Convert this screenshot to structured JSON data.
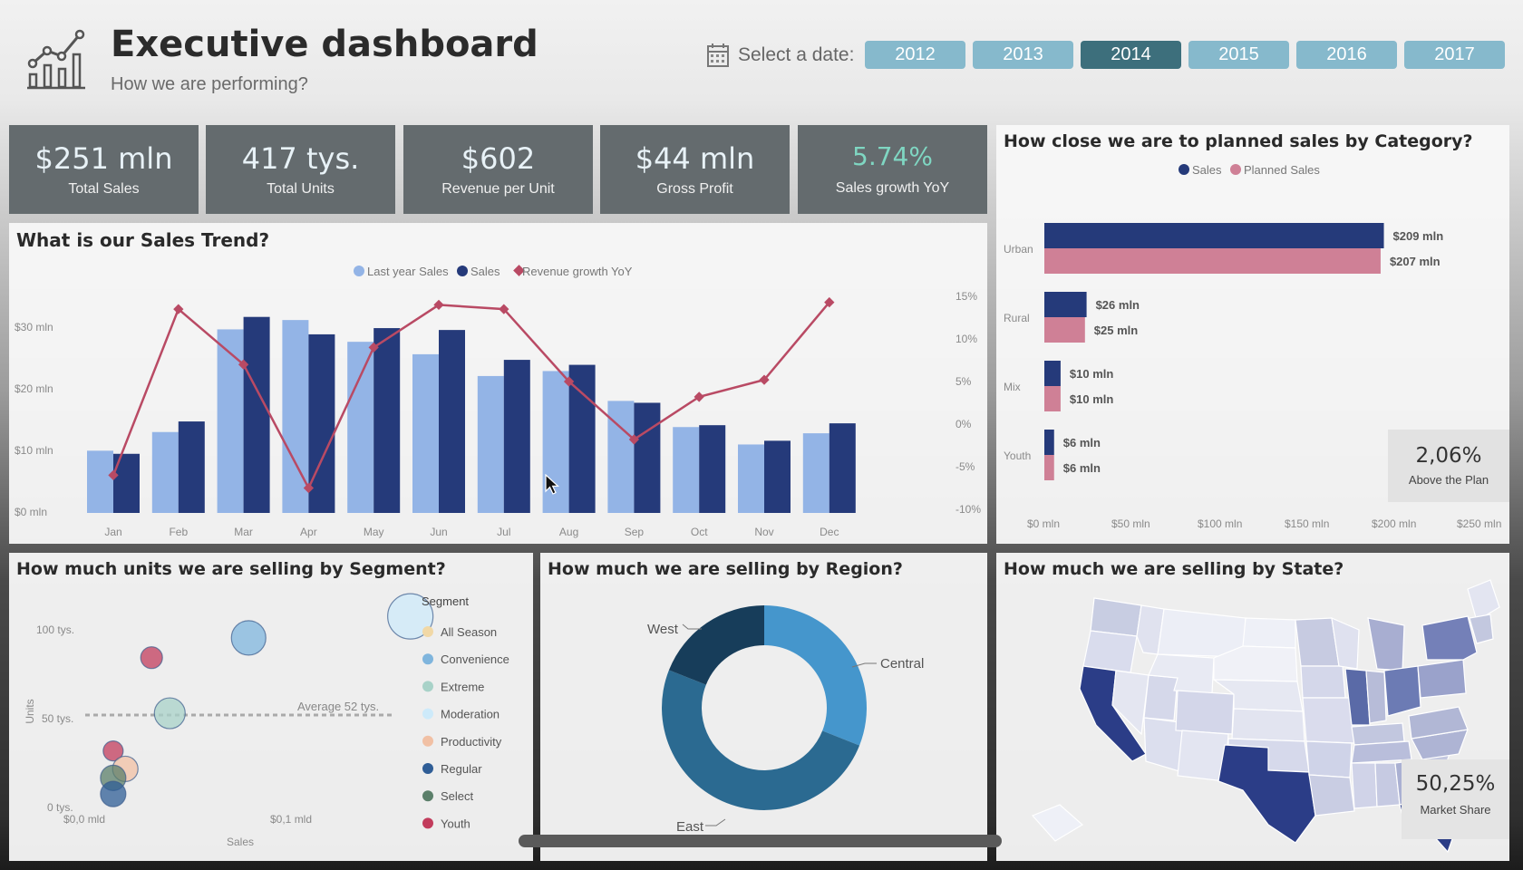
{
  "header": {
    "title": "Executive dashboard",
    "subtitle": "How we are performing?",
    "date_label": "Select a date:",
    "years": [
      "2012",
      "2013",
      "2014",
      "2015",
      "2016",
      "2017"
    ],
    "selected_year": "2014",
    "logo_icon": "bar-chart-trend-icon",
    "calendar_icon": "calendar-icon"
  },
  "kpis": [
    {
      "value": "$251 mln",
      "label": "Total Sales"
    },
    {
      "value": "417 tys.",
      "label": "Total Units"
    },
    {
      "value": "$602",
      "label": "Revenue per Unit"
    },
    {
      "value": "$44 mln",
      "label": "Gross Profit"
    },
    {
      "value": "5.74%",
      "label": "Sales growth YoY"
    }
  ],
  "colors": {
    "kpi_bg": "#646b6e",
    "last_year": "#93b4e6",
    "sales": "#253a7a",
    "growth": "#b94a64",
    "planned": "#cf8096",
    "year_btn": "#86b9cc",
    "year_btn_active": "#3d6f7c"
  },
  "trend": {
    "title": "What is our Sales Trend?",
    "legend": [
      "Last year Sales",
      "Sales",
      "Revenue growth YoY"
    ],
    "y_ticks": [
      "$0 mln",
      "$10 mln",
      "$20 mln",
      "$30 mln"
    ],
    "y2_ticks": [
      "15%",
      "10%",
      "5%",
      "0%",
      "-5%",
      "-10%"
    ]
  },
  "planned": {
    "title": "How close we are to planned sales by Category?",
    "legend": [
      "Sales",
      "Planned Sales"
    ],
    "x_ticks": [
      "$0 mln",
      "$50 mln",
      "$100 mln",
      "$150 mln",
      "$200 mln",
      "$250 mln"
    ],
    "categories": [
      {
        "name": "Urban",
        "sales_label": "$209 mln",
        "planned_label": "$207 mln"
      },
      {
        "name": "Rural",
        "sales_label": "$26 mln",
        "planned_label": "$25 mln"
      },
      {
        "name": "Mix",
        "sales_label": "$10 mln",
        "planned_label": "$10 mln"
      },
      {
        "name": "Youth",
        "sales_label": "$6 mln",
        "planned_label": "$6 mln"
      }
    ],
    "card": {
      "value": "2,06%",
      "label": "Above the Plan"
    }
  },
  "segment": {
    "title": "How much units we are selling by Segment?",
    "legend_title": "Segment",
    "y_label": "Units",
    "x_label": "Sales",
    "y_ticks": [
      "0 tys.",
      "50 tys.",
      "100 tys."
    ],
    "x_ticks": [
      "$0,0 mld",
      "$0,1 mld"
    ],
    "average_label": "Average 52 tys.",
    "segments": [
      {
        "name": "All Season",
        "color": "#f1d8a6"
      },
      {
        "name": "Convenience",
        "color": "#7fb5dd"
      },
      {
        "name": "Extreme",
        "color": "#a8d2c8"
      },
      {
        "name": "Moderation",
        "color": "#cdeafa"
      },
      {
        "name": "Productivity",
        "color": "#f1c0a4"
      },
      {
        "name": "Regular",
        "color": "#2f5d96"
      },
      {
        "name": "Select",
        "color": "#5b7f6a"
      },
      {
        "name": "Youth",
        "color": "#c23c5c"
      }
    ]
  },
  "region": {
    "title": "How much we are selling by Region?",
    "labels": [
      "West",
      "Central",
      "East"
    ]
  },
  "state": {
    "title": "How much we are selling by State?",
    "card": {
      "value": "50,25%",
      "label": "Market Share"
    }
  },
  "chart_data": [
    {
      "type": "bar",
      "title": "What is our Sales Trend?",
      "categories": [
        "Jan",
        "Feb",
        "Mar",
        "Apr",
        "May",
        "Jun",
        "Jul",
        "Aug",
        "Sep",
        "Oct",
        "Nov",
        "Dec"
      ],
      "ylim": [
        0,
        35
      ],
      "y2lim": [
        -10,
        15
      ],
      "series": [
        {
          "name": "Last year Sales",
          "type": "bar",
          "values": [
            10,
            13,
            29.5,
            31,
            27.5,
            25.5,
            22,
            22.8,
            18,
            13.8,
            11,
            12.8
          ]
        },
        {
          "name": "Sales",
          "type": "bar",
          "values": [
            9.5,
            14.7,
            31.5,
            28.7,
            29.7,
            29.4,
            24.6,
            23.8,
            17.7,
            14.1,
            11.6,
            14.4
          ]
        },
        {
          "name": "Revenue growth YoY",
          "type": "line",
          "values": [
            -6,
            13.5,
            7,
            -7.5,
            9,
            14,
            13.5,
            5,
            -1.8,
            3.2,
            5.2,
            14.3
          ]
        }
      ]
    },
    {
      "type": "bar",
      "title": "How close we are to planned sales by Category?",
      "categories": [
        "Urban",
        "Rural",
        "Mix",
        "Youth"
      ],
      "xlim": [
        0,
        250
      ],
      "series": [
        {
          "name": "Sales",
          "values": [
            209,
            26,
            10,
            6
          ]
        },
        {
          "name": "Planned Sales",
          "values": [
            207,
            25,
            10,
            6
          ]
        }
      ]
    },
    {
      "type": "scatter",
      "title": "How much units we are selling by Segment?",
      "xlabel": "Sales",
      "ylabel": "Units",
      "ylim": [
        0,
        120
      ],
      "points": [
        {
          "segment": "Moderation",
          "x": 0.155,
          "y": 107,
          "size": 25
        },
        {
          "segment": "Convenience",
          "x": 0.075,
          "y": 95,
          "size": 19
        },
        {
          "segment": "Youth",
          "x": 0.027,
          "y": 84,
          "size": 12
        },
        {
          "segment": "Extreme",
          "x": 0.036,
          "y": 53,
          "size": 17
        },
        {
          "segment": "Youth",
          "x": 0.008,
          "y": 32,
          "size": 11
        },
        {
          "segment": "Productivity",
          "x": 0.014,
          "y": 22,
          "size": 14
        },
        {
          "segment": "Select",
          "x": 0.008,
          "y": 17,
          "size": 14
        },
        {
          "segment": "Regular",
          "x": 0.008,
          "y": 8,
          "size": 14
        }
      ],
      "average": 52
    },
    {
      "type": "pie",
      "title": "How much we are selling by Region?",
      "donut": true,
      "slices": [
        {
          "label": "Central",
          "value": 31,
          "color": "#4596cc"
        },
        {
          "label": "East",
          "value": 50,
          "color": "#2b6a91"
        },
        {
          "label": "West",
          "value": 19,
          "color": "#173d5a"
        }
      ]
    }
  ]
}
